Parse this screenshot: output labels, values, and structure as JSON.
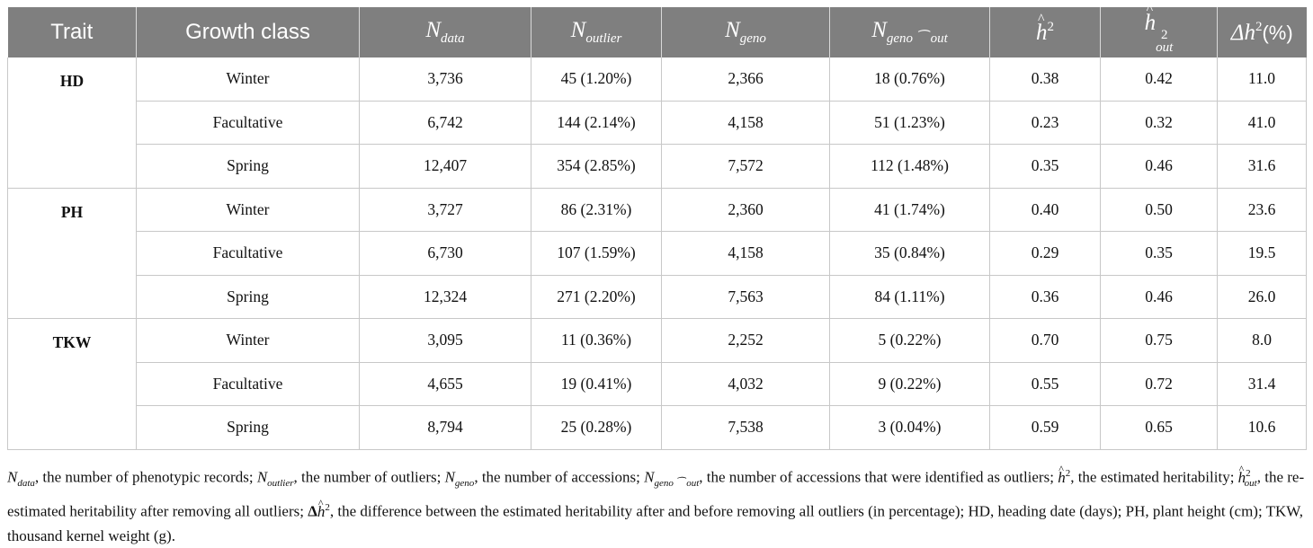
{
  "table": {
    "headers": {
      "trait": "Trait",
      "growth_class": "Growth class",
      "n_data": {
        "base": "N",
        "sub": "data"
      },
      "n_outlier": {
        "base": "N",
        "sub": "outlier"
      },
      "n_geno": {
        "base": "N",
        "sub": "geno"
      },
      "n_geno_out": {
        "base": "N",
        "sub": "geno ⁀ out"
      },
      "h2": {
        "base": "h",
        "sup": "2"
      },
      "h2_out": {
        "base": "h",
        "sup": "2",
        "sub": "out"
      },
      "delta_h2": {
        "prefix": "Δh",
        "sup": "2",
        "suffix": "(%)"
      }
    },
    "groups": [
      {
        "trait": "HD",
        "rows": [
          {
            "growth_class": "Winter",
            "n_data": "3,736",
            "n_outlier": "45 (1.20%)",
            "n_geno": "2,366",
            "n_geno_out": "18 (0.76%)",
            "h2": "0.38",
            "h2_out": "0.42",
            "delta_h2": "11.0"
          },
          {
            "growth_class": "Facultative",
            "n_data": "6,742",
            "n_outlier": "144 (2.14%)",
            "n_geno": "4,158",
            "n_geno_out": "51 (1.23%)",
            "h2": "0.23",
            "h2_out": "0.32",
            "delta_h2": "41.0"
          },
          {
            "growth_class": "Spring",
            "n_data": "12,407",
            "n_outlier": "354 (2.85%)",
            "n_geno": "7,572",
            "n_geno_out": "112 (1.48%)",
            "h2": "0.35",
            "h2_out": "0.46",
            "delta_h2": "31.6"
          }
        ]
      },
      {
        "trait": "PH",
        "rows": [
          {
            "growth_class": "Winter",
            "n_data": "3,727",
            "n_outlier": "86 (2.31%)",
            "n_geno": "2,360",
            "n_geno_out": "41 (1.74%)",
            "h2": "0.40",
            "h2_out": "0.50",
            "delta_h2": "23.6"
          },
          {
            "growth_class": "Facultative",
            "n_data": "6,730",
            "n_outlier": "107 (1.59%)",
            "n_geno": "4,158",
            "n_geno_out": "35 (0.84%)",
            "h2": "0.29",
            "h2_out": "0.35",
            "delta_h2": "19.5"
          },
          {
            "growth_class": "Spring",
            "n_data": "12,324",
            "n_outlier": "271 (2.20%)",
            "n_geno": "7,563",
            "n_geno_out": "84 (1.11%)",
            "h2": "0.36",
            "h2_out": "0.46",
            "delta_h2": "26.0"
          }
        ]
      },
      {
        "trait": "TKW",
        "rows": [
          {
            "growth_class": "Winter",
            "n_data": "3,095",
            "n_outlier": "11 (0.36%)",
            "n_geno": "2,252",
            "n_geno_out": "5 (0.22%)",
            "h2": "0.70",
            "h2_out": "0.75",
            "delta_h2": "8.0"
          },
          {
            "growth_class": "Facultative",
            "n_data": "4,655",
            "n_outlier": "19 (0.41%)",
            "n_geno": "4,032",
            "n_geno_out": "9 (0.22%)",
            "h2": "0.55",
            "h2_out": "0.72",
            "delta_h2": "31.4"
          },
          {
            "growth_class": "Spring",
            "n_data": "8,794",
            "n_outlier": "25 (0.28%)",
            "n_geno": "7,538",
            "n_geno_out": "3 (0.04%)",
            "h2": "0.59",
            "h2_out": "0.65",
            "delta_h2": "10.6"
          }
        ]
      }
    ]
  },
  "footnote": {
    "d1": ", the number of phenotypic records; ",
    "d2": ", the number of outliers; ",
    "d3": ", the number of accessions; ",
    "d4": ", the number of accessions that were identified as outliers; ",
    "d5": ", the estimated heritability; ",
    "d6": ", the re-estimated heritability after removing all outliers; ",
    "d7": ", the difference between the estimated heritability after and before removing all outliers (in percentage); HD, heading date (days); PH, plant height (cm); TKW, thousand kernel weight (g)."
  }
}
